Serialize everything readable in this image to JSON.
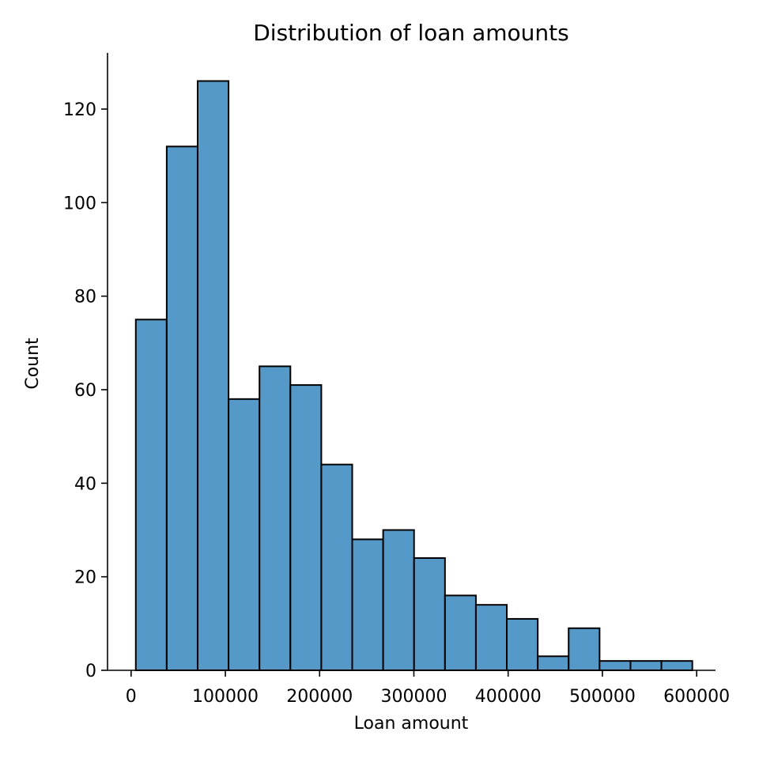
{
  "chart_data": {
    "type": "bar",
    "title": "Distribution of loan amounts",
    "xlabel": "Loan amount",
    "ylabel": "Count",
    "xlim": [
      -25000,
      620000
    ],
    "ylim": [
      0,
      132
    ],
    "xticks": [
      0,
      100000,
      200000,
      300000,
      400000,
      500000,
      600000
    ],
    "xtick_labels": [
      "0",
      "100000",
      "200000",
      "300000",
      "400000",
      "500000",
      "600000"
    ],
    "yticks": [
      0,
      20,
      40,
      60,
      80,
      100,
      120
    ],
    "ytick_labels": [
      "0",
      "20",
      "40",
      "60",
      "80",
      "100",
      "120"
    ],
    "bin_edges": [
      5000,
      37800,
      70600,
      103400,
      136200,
      169000,
      201800,
      234600,
      267400,
      300200,
      333000,
      365800,
      398600,
      431400,
      464200,
      497000,
      529800,
      562600,
      595400
    ],
    "values": [
      75,
      112,
      126,
      58,
      65,
      61,
      44,
      28,
      30,
      24,
      16,
      14,
      11,
      3,
      9,
      2,
      2,
      2
    ],
    "bar_color": "#5499c7",
    "edge_color": "#000000",
    "grid": false,
    "legend": "none"
  }
}
